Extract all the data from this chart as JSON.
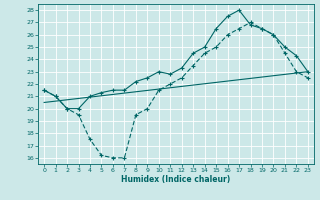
{
  "xlabel": "Humidex (Indice chaleur)",
  "bg_color": "#cce8e8",
  "grid_color": "#ffffff",
  "line_color": "#006666",
  "xlim": [
    -0.5,
    23.5
  ],
  "ylim": [
    15.5,
    28.5
  ],
  "xticks": [
    0,
    1,
    2,
    3,
    4,
    5,
    6,
    7,
    8,
    9,
    10,
    11,
    12,
    13,
    14,
    15,
    16,
    17,
    18,
    19,
    20,
    21,
    22,
    23
  ],
  "yticks": [
    16,
    17,
    18,
    19,
    20,
    21,
    22,
    23,
    24,
    25,
    26,
    27,
    28
  ],
  "line1_x": [
    0,
    1,
    2,
    3,
    4,
    5,
    6,
    7,
    8,
    9,
    10,
    11,
    12,
    13,
    14,
    15,
    16,
    17,
    18,
    19,
    20,
    21,
    22,
    23
  ],
  "line1_y": [
    21.5,
    21.0,
    20.0,
    20.0,
    21.0,
    21.3,
    21.5,
    21.5,
    22.2,
    22.5,
    23.0,
    22.8,
    23.3,
    24.5,
    25.0,
    26.5,
    27.5,
    28.0,
    26.8,
    26.5,
    26.0,
    25.0,
    24.3,
    23.0
  ],
  "line2_x": [
    0,
    1,
    2,
    3,
    4,
    5,
    6,
    7,
    8,
    9,
    10,
    11,
    12,
    13,
    14,
    15,
    16,
    17,
    18,
    19,
    20,
    21,
    22,
    23
  ],
  "line2_y": [
    21.5,
    21.0,
    20.0,
    19.5,
    17.5,
    16.2,
    16.0,
    16.0,
    19.5,
    20.0,
    21.5,
    22.0,
    22.5,
    23.5,
    24.5,
    25.0,
    26.0,
    26.5,
    27.0,
    26.5,
    26.0,
    24.5,
    23.0,
    22.5
  ],
  "line3_x": [
    0,
    23
  ],
  "line3_y": [
    20.5,
    23.0
  ]
}
